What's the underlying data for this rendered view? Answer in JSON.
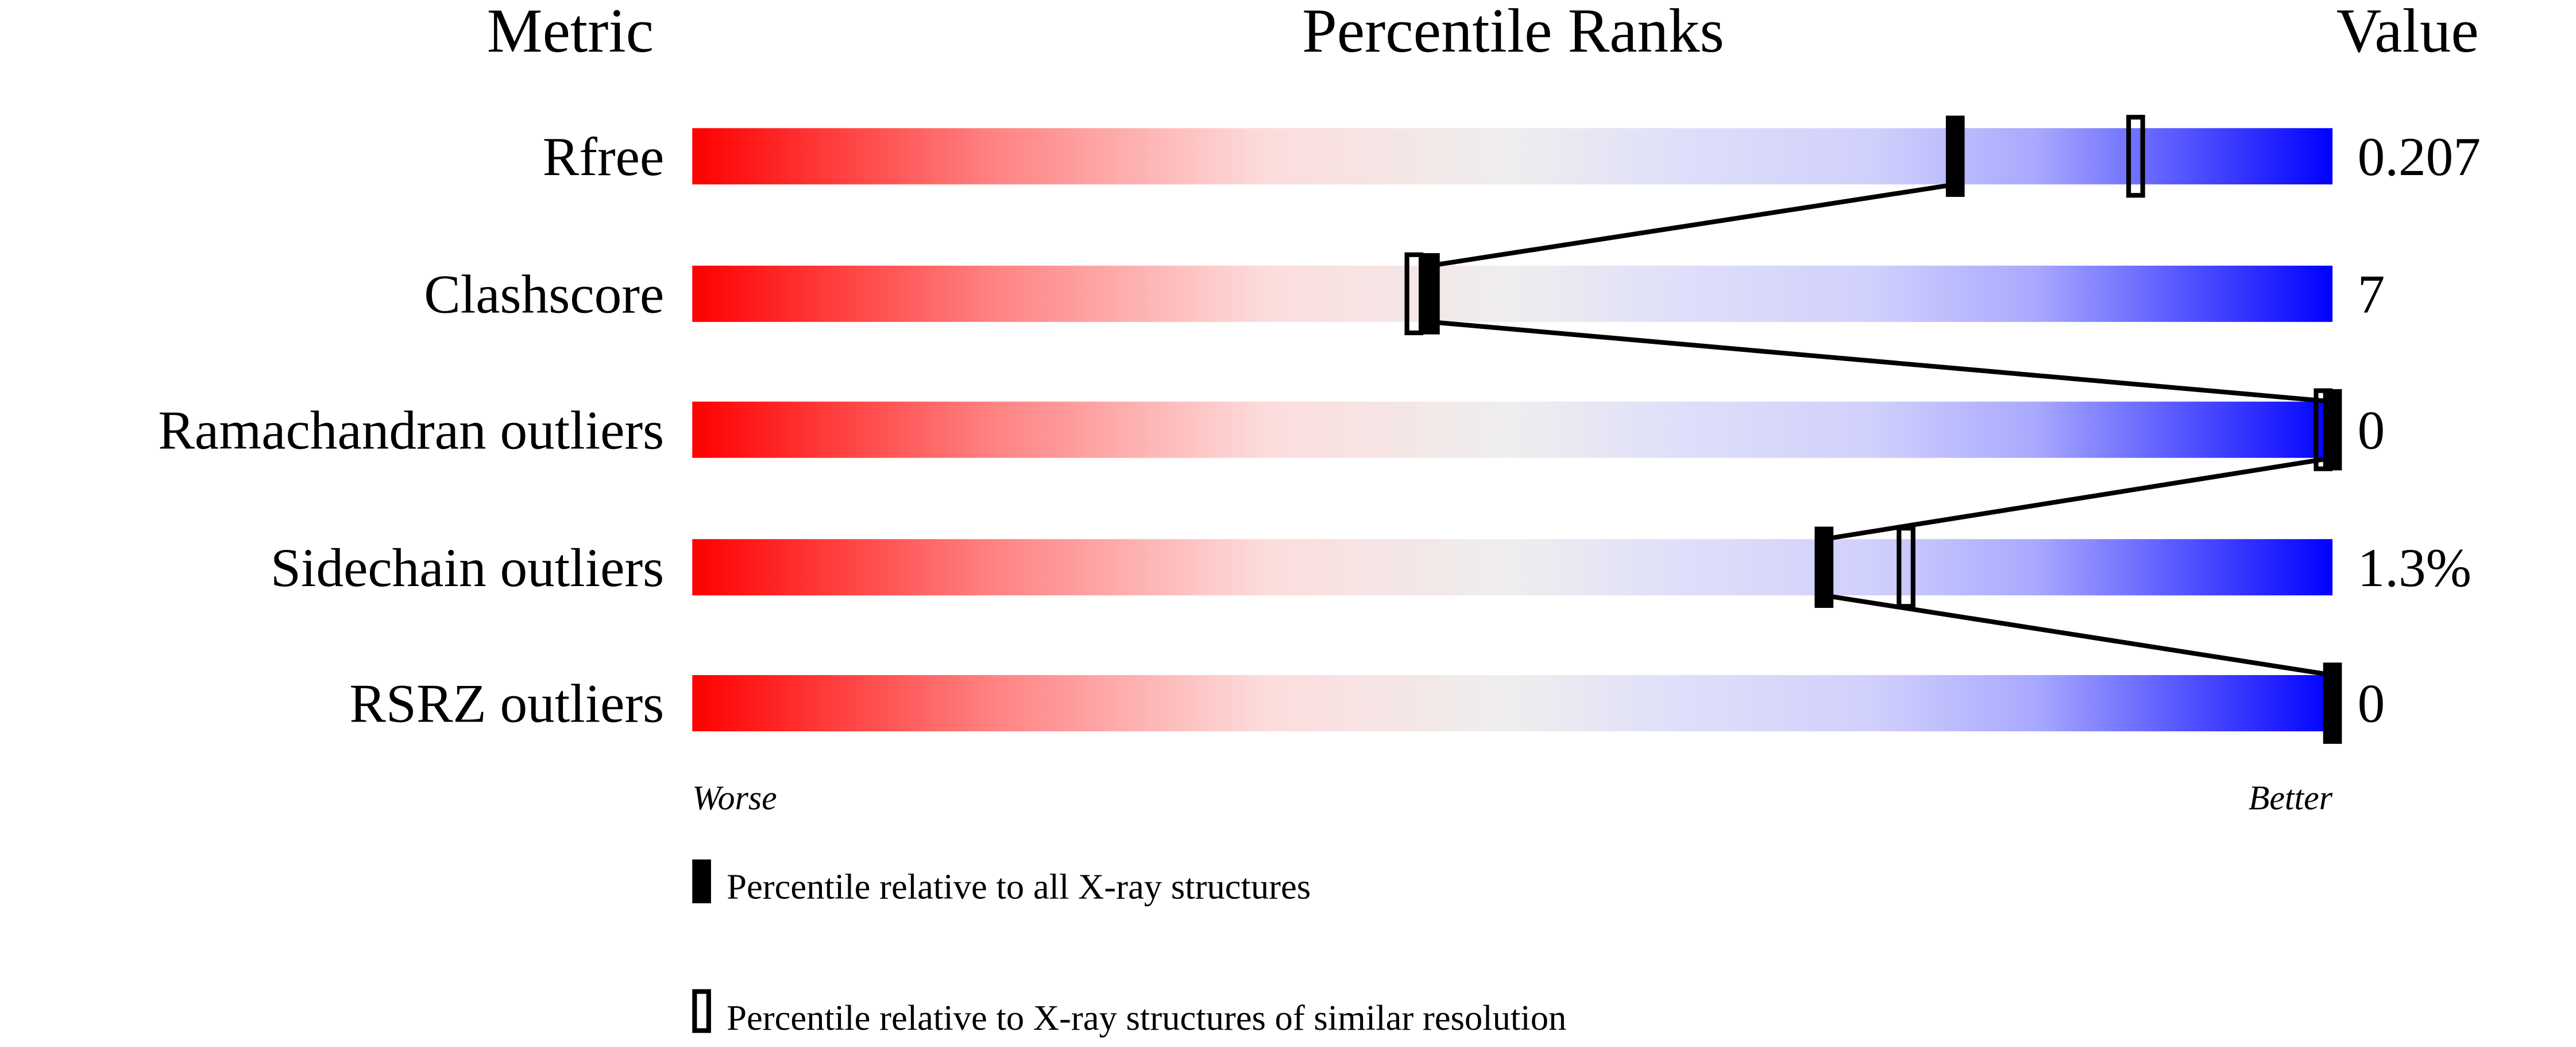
{
  "chart_data": {
    "type": "percentile-bar",
    "headers": {
      "metric": "Metric",
      "ranks": "Percentile Ranks",
      "value": "Value"
    },
    "xlim": [
      0,
      100
    ],
    "metrics": [
      {
        "name": "Rfree",
        "value": "0.207",
        "percentile_all": 77,
        "percentile_similar": 88
      },
      {
        "name": "Clashscore",
        "value": "7",
        "percentile_all": 45,
        "percentile_similar": 44
      },
      {
        "name": "Ramachandran outliers",
        "value": "0",
        "percentile_all": 100,
        "percentile_similar": 100
      },
      {
        "name": "Sidechain outliers",
        "value": "1.3%",
        "percentile_all": 69,
        "percentile_similar": 74
      },
      {
        "name": "RSRZ outliers",
        "value": "0",
        "percentile_all": 100,
        "percentile_similar": null
      }
    ],
    "axis_left": "Worse",
    "axis_right": "Better",
    "legend": {
      "all": "Percentile relative to all X-ray structures",
      "similar": "Percentile relative to X-ray structures of similar resolution"
    },
    "colors": {
      "worse": "#ff0000",
      "middle": "#eeeeee",
      "better": "#0000ff",
      "marker": "#000000"
    }
  }
}
